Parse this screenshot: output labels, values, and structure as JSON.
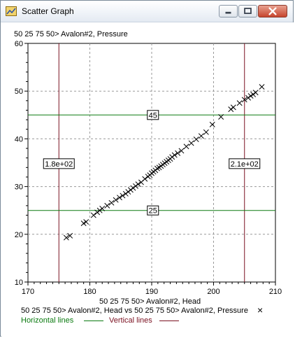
{
  "window": {
    "title": "Scatter Graph",
    "controls": {
      "minimize": "minimize",
      "maximize": "maximize",
      "close": "close"
    },
    "icon": "chart-app-icon"
  },
  "chart_data": {
    "type": "scatter",
    "ylabel": "50 25 75 50> Avalon#2, Pressure",
    "xlabel": "50 25 75 50> Avalon#2, Head",
    "xlim": [
      170,
      210
    ],
    "ylim": [
      10,
      60
    ],
    "x_ticks": [
      170,
      180,
      190,
      200,
      210
    ],
    "y_ticks": [
      10,
      20,
      30,
      40,
      50,
      60
    ],
    "grid": true,
    "marker": "x",
    "series": [
      {
        "name": "50 25 75 50> Avalon#2, Head vs 50 25 75 50> Avalon#2, Pressure",
        "x": [
          176.2,
          176.8,
          179.0,
          179.4,
          180.6,
          181.2,
          181.6,
          182.0,
          182.8,
          183.5,
          184.2,
          184.8,
          185.3,
          185.8,
          186.2,
          186.6,
          187.0,
          187.4,
          187.8,
          188.3,
          188.9,
          189.4,
          189.7,
          190.0,
          190.3,
          190.6,
          190.9,
          191.2,
          191.5,
          191.8,
          192.1,
          192.4,
          192.7,
          193.0,
          193.3,
          193.7,
          194.2,
          194.8,
          195.6,
          196.4,
          197.2,
          198.0,
          198.8,
          199.8,
          201.2,
          202.8,
          203.2,
          204.2,
          205.0,
          205.6,
          206.0,
          206.4,
          206.8,
          207.8
        ],
        "y": [
          19.3,
          19.7,
          22.3,
          22.6,
          24.0,
          24.6,
          25.0,
          25.4,
          26.0,
          26.6,
          27.2,
          27.7,
          28.1,
          28.5,
          28.9,
          29.3,
          29.7,
          30.1,
          30.5,
          30.9,
          31.6,
          32.1,
          32.4,
          32.8,
          33.1,
          33.4,
          33.8,
          34.0,
          34.3,
          34.6,
          34.9,
          35.2,
          35.5,
          35.8,
          36.2,
          36.6,
          37.0,
          37.5,
          38.4,
          39.1,
          39.9,
          40.6,
          41.4,
          43.0,
          44.6,
          46.2,
          46.6,
          47.5,
          48.2,
          48.6,
          49.0,
          49.3,
          49.7,
          50.9
        ]
      }
    ],
    "horizontal_lines": [
      {
        "value": 45,
        "label": "45",
        "color": "#0b7a10"
      },
      {
        "value": 25,
        "label": "25",
        "color": "#0b7a10"
      }
    ],
    "vertical_lines": [
      {
        "value": 175,
        "label": "1.8e+02",
        "color": "#7a1020"
      },
      {
        "value": 205,
        "label": "2.1e+02",
        "color": "#7a1020"
      }
    ],
    "legend": {
      "series_label": "50 25 75 50> Avalon#2, Head vs 50 25 75 50> Avalon#2, Pressure",
      "marker_glyph": "×",
      "horizontal_label": "Horizontal lines",
      "vertical_label": "Vertical lines",
      "placement": "bottom"
    }
  }
}
